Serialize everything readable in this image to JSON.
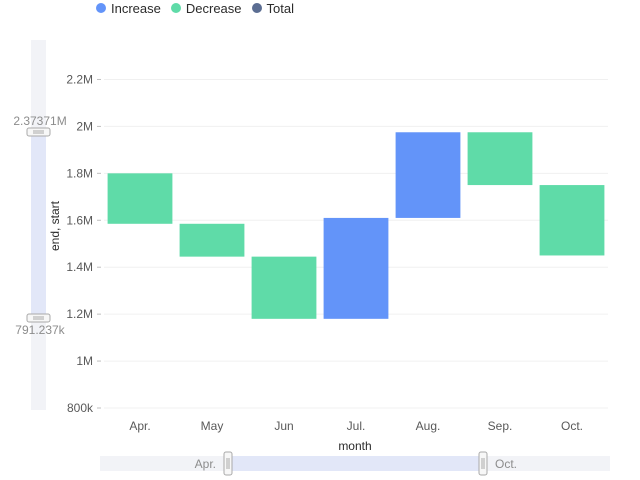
{
  "legend": {
    "items": [
      {
        "label": "Increase",
        "color": "#6394f9"
      },
      {
        "label": "Decrease",
        "color": "#5fdba8"
      },
      {
        "label": "Total",
        "color": "#5b6d92"
      }
    ]
  },
  "chart_data": {
    "type": "bar",
    "subtype": "waterfall",
    "xlabel": "month",
    "ylabel": "end, start",
    "categories": [
      "Apr.",
      "May",
      "Jun",
      "Jul.",
      "Aug.",
      "Sep.",
      "Oct."
    ],
    "ranges": [
      {
        "category": "Apr.",
        "start": 1800000,
        "end": 1585000,
        "type": "Decrease"
      },
      {
        "category": "May",
        "start": 1585000,
        "end": 1445000,
        "type": "Decrease"
      },
      {
        "category": "Jun",
        "start": 1445000,
        "end": 1180000,
        "type": "Decrease"
      },
      {
        "category": "Jul.",
        "start": 1180000,
        "end": 1610000,
        "type": "Increase"
      },
      {
        "category": "Aug.",
        "start": 1610000,
        "end": 1975000,
        "type": "Increase"
      },
      {
        "category": "Sep.",
        "start": 1975000,
        "end": 1750000,
        "type": "Decrease"
      },
      {
        "category": "Oct.",
        "start": 1750000,
        "end": 1450000,
        "type": "Decrease"
      }
    ],
    "ylim": [
      800000,
      2300000
    ],
    "yticks": [
      800000,
      1000000,
      1200000,
      1400000,
      1600000,
      1800000,
      2000000,
      2200000
    ],
    "ytick_labels": [
      "800k",
      "1M",
      "1.2M",
      "1.4M",
      "1.6M",
      "1.8M",
      "2M",
      "2.2M"
    ],
    "grid": true,
    "legend_position": "top-left"
  },
  "y_slider": {
    "max_label": "2.37371M",
    "min_label": "791.237k"
  },
  "x_slider": {
    "start_label": "Apr.",
    "end_label": "Oct."
  }
}
